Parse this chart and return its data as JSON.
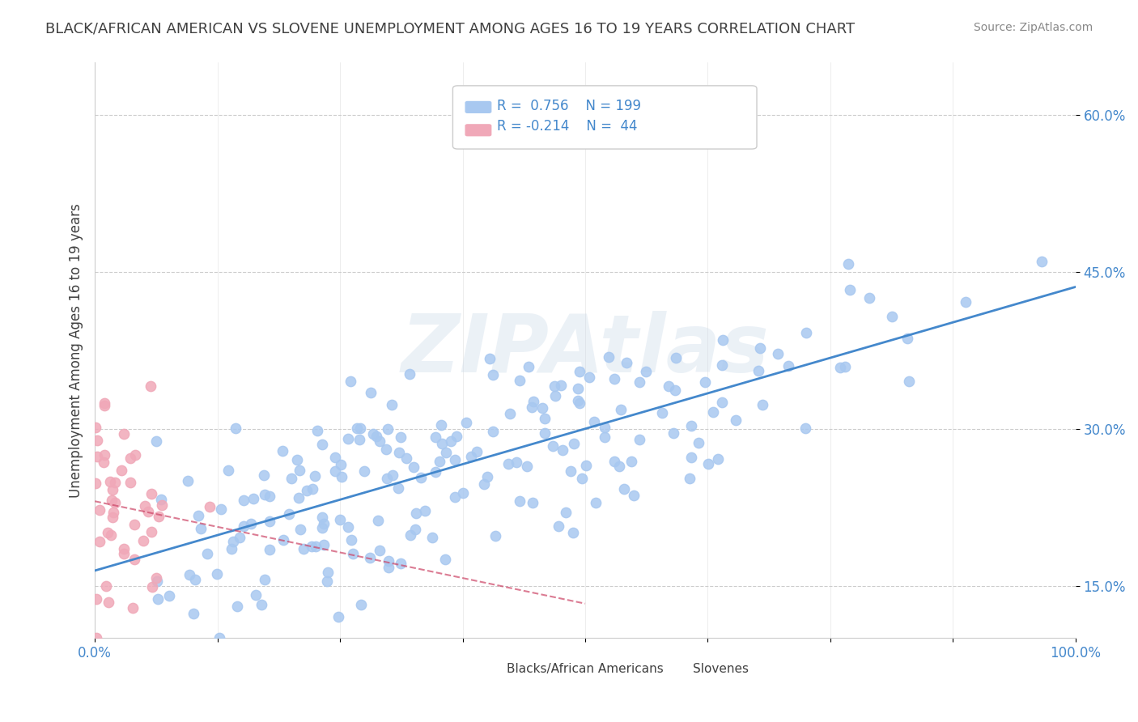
{
  "title": "BLACK/AFRICAN AMERICAN VS SLOVENE UNEMPLOYMENT AMONG AGES 16 TO 19 YEARS CORRELATION CHART",
  "source": "Source: ZipAtlas.com",
  "ylabel": "Unemployment Among Ages 16 to 19 years",
  "xlabel": "",
  "xlim": [
    0,
    1
  ],
  "ylim": [
    0.1,
    0.65
  ],
  "yticks": [
    0.15,
    0.3,
    0.45,
    0.6
  ],
  "ytick_labels": [
    "15.0%",
    "30.0%",
    "45.0%",
    "60.0%"
  ],
  "xticks": [
    0.0,
    0.125,
    0.25,
    0.375,
    0.5,
    0.625,
    0.75,
    0.875,
    1.0
  ],
  "xtick_labels": [
    "0.0%",
    "",
    "",
    "",
    "",
    "",
    "",
    "",
    "100.0%"
  ],
  "blue_color": "#a8c8f0",
  "pink_color": "#f0a8b8",
  "blue_line_color": "#4488cc",
  "pink_line_color": "#cc4466",
  "R_blue": 0.756,
  "N_blue": 199,
  "R_pink": -0.214,
  "N_pink": 44,
  "legend_label_blue": "Blacks/African Americans",
  "legend_label_pink": "Slovenes",
  "watermark": "ZIPAtlas",
  "watermark_color": "#c8d8e8",
  "background_color": "#ffffff",
  "grid_color": "#cccccc",
  "title_color": "#404040",
  "axis_label_color": "#404040",
  "tick_label_color": "#4488cc",
  "legend_text_color": "#4488cc",
  "blue_seed": 42,
  "pink_seed": 7
}
